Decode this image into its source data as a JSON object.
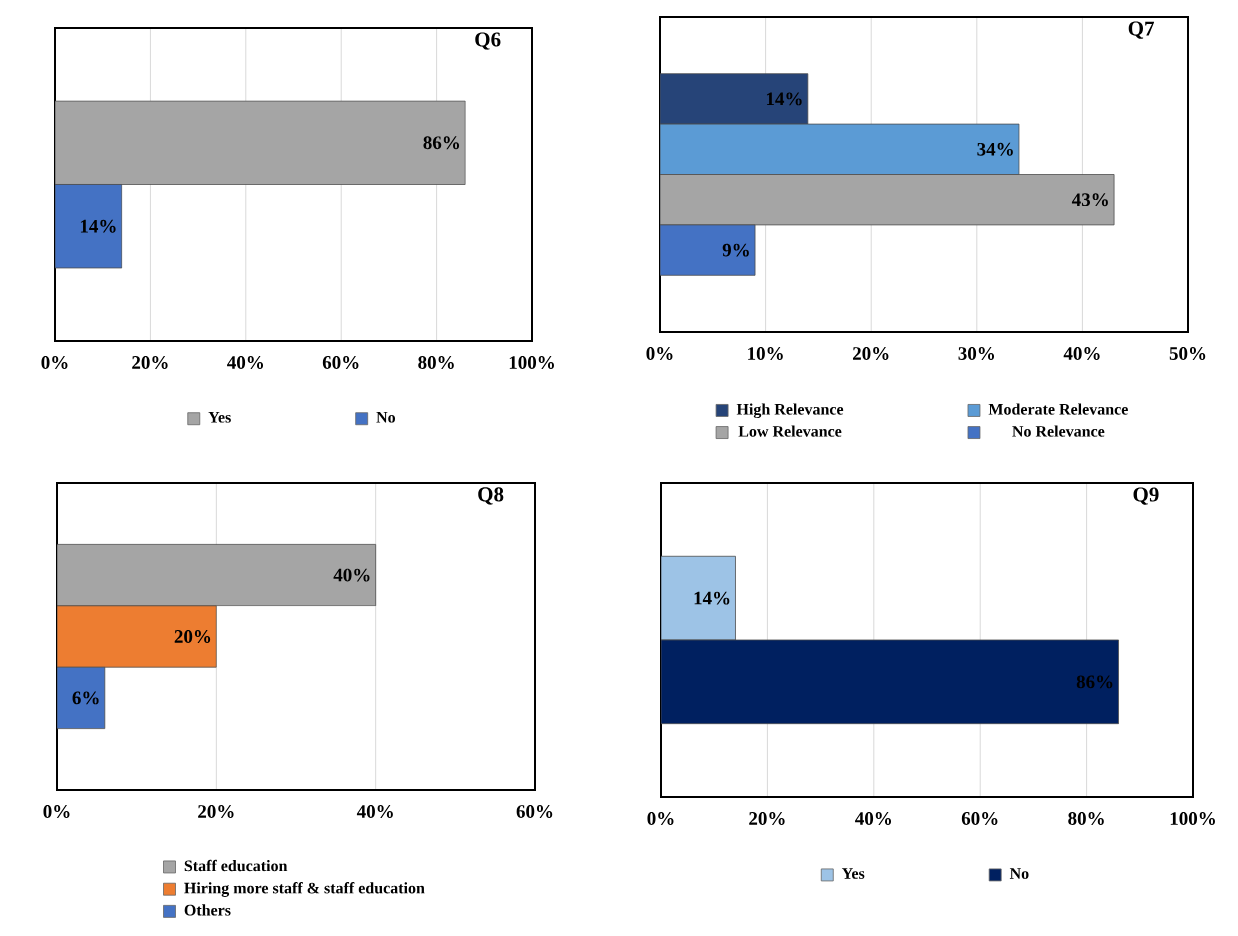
{
  "chart_data": [
    {
      "type": "bar",
      "orientation": "horizontal",
      "title": "Q6",
      "categories": [
        null
      ],
      "grid": "x",
      "legend": "bottom",
      "xlim": [
        0,
        100
      ],
      "xticks": [
        {
          "value": 0,
          "label": "0%"
        },
        {
          "value": 20,
          "label": "20%"
        },
        {
          "value": 40,
          "label": "40%"
        },
        {
          "value": 60,
          "label": "60%"
        },
        {
          "value": 80,
          "label": "80%"
        },
        {
          "value": 100,
          "label": "100%"
        }
      ],
      "series": [
        {
          "name": "Yes",
          "color": "#a5a5a5",
          "values": [
            86
          ],
          "value_labels": [
            "86%"
          ]
        },
        {
          "name": "No",
          "color": "#4472c4",
          "values": [
            14
          ],
          "value_labels": [
            "14%"
          ]
        }
      ]
    },
    {
      "type": "bar",
      "orientation": "horizontal",
      "title": "Q7",
      "categories": [
        null
      ],
      "grid": "x",
      "legend": "bottom",
      "xlim": [
        0,
        50
      ],
      "xticks": [
        {
          "value": 0,
          "label": "0%"
        },
        {
          "value": 10,
          "label": "10%"
        },
        {
          "value": 20,
          "label": "20%"
        },
        {
          "value": 30,
          "label": "30%"
        },
        {
          "value": 40,
          "label": "40%"
        },
        {
          "value": 50,
          "label": "50%"
        }
      ],
      "series": [
        {
          "name": "High Relevance",
          "color": "#264478",
          "values": [
            14
          ],
          "value_labels": [
            "14%"
          ]
        },
        {
          "name": "Moderate Relevance",
          "color": "#5b9bd5",
          "values": [
            34
          ],
          "value_labels": [
            "34%"
          ]
        },
        {
          "name": "Low Relevance",
          "color": "#a5a5a5",
          "values": [
            43
          ],
          "value_labels": [
            "43%"
          ]
        },
        {
          "name": "No Relevance",
          "color": "#4472c4",
          "values": [
            9
          ],
          "value_labels": [
            "9%"
          ]
        }
      ]
    },
    {
      "type": "bar",
      "orientation": "horizontal",
      "title": "Q8",
      "categories": [
        null
      ],
      "grid": "x",
      "legend": "bottom",
      "xlim": [
        0,
        60
      ],
      "xticks": [
        {
          "value": 0,
          "label": "0%"
        },
        {
          "value": 20,
          "label": "20%"
        },
        {
          "value": 40,
          "label": "40%"
        },
        {
          "value": 60,
          "label": "60%"
        }
      ],
      "series": [
        {
          "name": "Staff education",
          "color": "#a5a5a5",
          "values": [
            40
          ],
          "value_labels": [
            "40%"
          ]
        },
        {
          "name": "Hiring more staff & staff education",
          "color": "#ed7d31",
          "values": [
            20
          ],
          "value_labels": [
            "20%"
          ]
        },
        {
          "name": "Others",
          "color": "#4472c4",
          "values": [
            6
          ],
          "value_labels": [
            "6%"
          ]
        }
      ]
    },
    {
      "type": "bar",
      "orientation": "horizontal",
      "title": "Q9",
      "categories": [
        null
      ],
      "grid": "x",
      "legend": "bottom",
      "xlim": [
        0,
        100
      ],
      "xticks": [
        {
          "value": 0,
          "label": "0%"
        },
        {
          "value": 20,
          "label": "20%"
        },
        {
          "value": 40,
          "label": "40%"
        },
        {
          "value": 60,
          "label": "60%"
        },
        {
          "value": 80,
          "label": "80%"
        },
        {
          "value": 100,
          "label": "100%"
        }
      ],
      "series": [
        {
          "name": "Yes",
          "color": "#9dc3e6",
          "values": [
            14
          ],
          "value_labels": [
            "14%"
          ]
        },
        {
          "name": "No",
          "color": "#002060",
          "values": [
            86
          ],
          "value_labels": [
            "86%"
          ]
        }
      ]
    }
  ]
}
